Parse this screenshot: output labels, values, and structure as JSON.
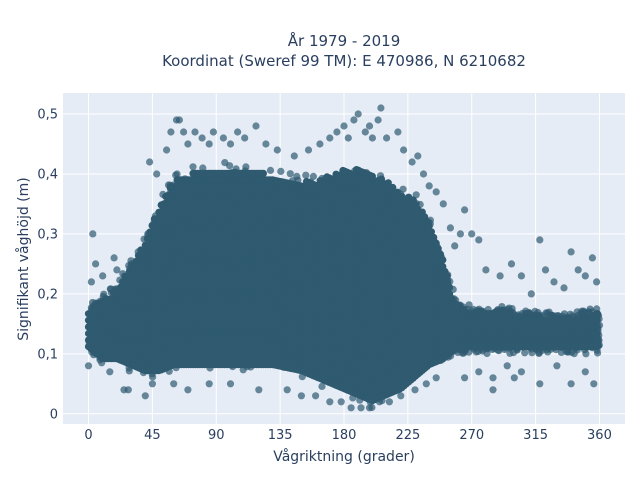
{
  "chart_data": {
    "type": "scatter",
    "title_line1": "År 1979 - 2019",
    "title_line2": "Koordinat (Sweref 99 TM): E 470986, N 6210682",
    "xlabel": "Vågriktning (grader)",
    "ylabel": "Signifikant våghöjd (m)",
    "xlim": [
      -18,
      378
    ],
    "ylim": [
      -0.017,
      0.535
    ],
    "xticks": [
      0,
      45,
      90,
      135,
      180,
      225,
      270,
      315,
      360
    ],
    "xtick_labels": [
      "0",
      "45",
      "90",
      "135",
      "180",
      "225",
      "270",
      "315",
      "360"
    ],
    "yticks": [
      0,
      0.1,
      0.2,
      0.3,
      0.4,
      0.5
    ],
    "ytick_labels": [
      "0",
      "0,1",
      "0,2",
      "0,3",
      "0,4",
      "0,5"
    ],
    "grid": true,
    "background_color": "#e5ecf6",
    "marker_color": "#2f5a70",
    "marker_opacity": 0.7,
    "density_envelope": {
      "direction_deg": [
        0,
        5,
        10,
        20,
        30,
        40,
        50,
        60,
        70,
        80,
        90,
        110,
        130,
        150,
        160,
        170,
        180,
        190,
        200,
        210,
        220,
        230,
        240,
        250,
        255,
        260,
        270,
        290,
        320,
        340,
        360
      ],
      "lower_m": [
        0.1,
        0.09,
        0.08,
        0.08,
        0.07,
        0.06,
        0.06,
        0.07,
        0.07,
        0.07,
        0.07,
        0.07,
        0.07,
        0.06,
        0.05,
        0.04,
        0.03,
        0.02,
        0.01,
        0.02,
        0.03,
        0.05,
        0.07,
        0.08,
        0.09,
        0.1,
        0.1,
        0.1,
        0.1,
        0.1,
        0.1
      ],
      "upper_m": [
        0.18,
        0.19,
        0.2,
        0.22,
        0.26,
        0.3,
        0.36,
        0.4,
        0.41,
        0.42,
        0.42,
        0.42,
        0.41,
        0.4,
        0.4,
        0.41,
        0.42,
        0.42,
        0.41,
        0.4,
        0.38,
        0.37,
        0.33,
        0.27,
        0.22,
        0.19,
        0.18,
        0.18,
        0.17,
        0.17,
        0.18
      ]
    },
    "outlier_points": [
      [
        3,
        0.3
      ],
      [
        5,
        0.25
      ],
      [
        10,
        0.23
      ],
      [
        20,
        0.24
      ],
      [
        32,
        0.25
      ],
      [
        25,
        0.04
      ],
      [
        28,
        0.04
      ],
      [
        40,
        0.03
      ],
      [
        45,
        0.05
      ],
      [
        43,
        0.42
      ],
      [
        48,
        0.4
      ],
      [
        55,
        0.44
      ],
      [
        58,
        0.47
      ],
      [
        62,
        0.49
      ],
      [
        64,
        0.49
      ],
      [
        67,
        0.47
      ],
      [
        70,
        0.45
      ],
      [
        75,
        0.47
      ],
      [
        80,
        0.46
      ],
      [
        85,
        0.45
      ],
      [
        88,
        0.47
      ],
      [
        95,
        0.46
      ],
      [
        100,
        0.45
      ],
      [
        105,
        0.47
      ],
      [
        110,
        0.46
      ],
      [
        118,
        0.48
      ],
      [
        125,
        0.45
      ],
      [
        133,
        0.44
      ],
      [
        145,
        0.43
      ],
      [
        155,
        0.44
      ],
      [
        163,
        0.45
      ],
      [
        170,
        0.46
      ],
      [
        175,
        0.47
      ],
      [
        180,
        0.48
      ],
      [
        183,
        0.46
      ],
      [
        187,
        0.49
      ],
      [
        190,
        0.5
      ],
      [
        195,
        0.47
      ],
      [
        198,
        0.48
      ],
      [
        200,
        0.46
      ],
      [
        204,
        0.49
      ],
      [
        206,
        0.51
      ],
      [
        210,
        0.46
      ],
      [
        218,
        0.47
      ],
      [
        222,
        0.44
      ],
      [
        228,
        0.42
      ],
      [
        232,
        0.43
      ],
      [
        236,
        0.4
      ],
      [
        240,
        0.38
      ],
      [
        245,
        0.37
      ],
      [
        250,
        0.35
      ],
      [
        255,
        0.31
      ],
      [
        258,
        0.28
      ],
      [
        262,
        0.3
      ],
      [
        265,
        0.34
      ],
      [
        270,
        0.3
      ],
      [
        275,
        0.29
      ],
      [
        280,
        0.24
      ],
      [
        290,
        0.23
      ],
      [
        298,
        0.25
      ],
      [
        305,
        0.23
      ],
      [
        312,
        0.2
      ],
      [
        318,
        0.29
      ],
      [
        322,
        0.24
      ],
      [
        328,
        0.22
      ],
      [
        335,
        0.21
      ],
      [
        340,
        0.27
      ],
      [
        345,
        0.24
      ],
      [
        350,
        0.23
      ],
      [
        355,
        0.26
      ],
      [
        358,
        0.22
      ],
      [
        265,
        0.06
      ],
      [
        275,
        0.07
      ],
      [
        285,
        0.06
      ],
      [
        295,
        0.08
      ],
      [
        305,
        0.07
      ],
      [
        318,
        0.05
      ],
      [
        330,
        0.08
      ],
      [
        340,
        0.05
      ],
      [
        350,
        0.07
      ],
      [
        356,
        0.05
      ],
      [
        285,
        0.04
      ],
      [
        300,
        0.06
      ],
      [
        60,
        0.05
      ],
      [
        70,
        0.04
      ],
      [
        85,
        0.05
      ],
      [
        100,
        0.05
      ],
      [
        120,
        0.04
      ],
      [
        140,
        0.04
      ],
      [
        150,
        0.03
      ],
      [
        160,
        0.03
      ],
      [
        170,
        0.02
      ],
      [
        178,
        0.02
      ],
      [
        185,
        0.01
      ],
      [
        192,
        0.01
      ],
      [
        198,
        0.01
      ],
      [
        205,
        0.02
      ],
      [
        212,
        0.02
      ],
      [
        220,
        0.03
      ],
      [
        230,
        0.04
      ],
      [
        238,
        0.05
      ],
      [
        245,
        0.06
      ],
      [
        0,
        0.08
      ],
      [
        2,
        0.22
      ],
      [
        8,
        0.09
      ],
      [
        15,
        0.07
      ],
      [
        18,
        0.26
      ],
      [
        35,
        0.27
      ]
    ]
  }
}
